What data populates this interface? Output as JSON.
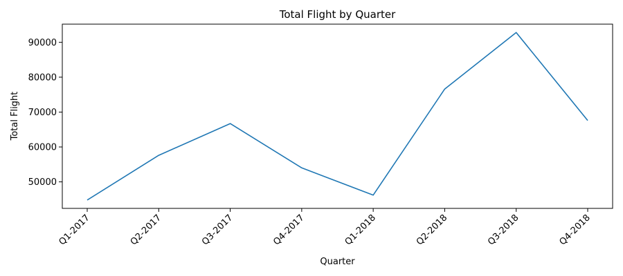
{
  "chart_data": {
    "type": "line",
    "title": "Total Flight by Quarter",
    "xlabel": "Quarter",
    "ylabel": "Total Flight",
    "categories": [
      "Q1-2017",
      "Q2-2017",
      "Q3-2017",
      "Q4-2017",
      "Q1-2018",
      "Q2-2018",
      "Q3-2018",
      "Q4-2018"
    ],
    "series": [
      {
        "values": [
          44800,
          57600,
          66700,
          54000,
          46200,
          76600,
          92800,
          67600
        ],
        "color": "#1f77b4"
      }
    ],
    "yticks": [
      50000,
      60000,
      70000,
      80000,
      90000
    ],
    "ylim": [
      42400,
      95200
    ],
    "grid": false
  }
}
